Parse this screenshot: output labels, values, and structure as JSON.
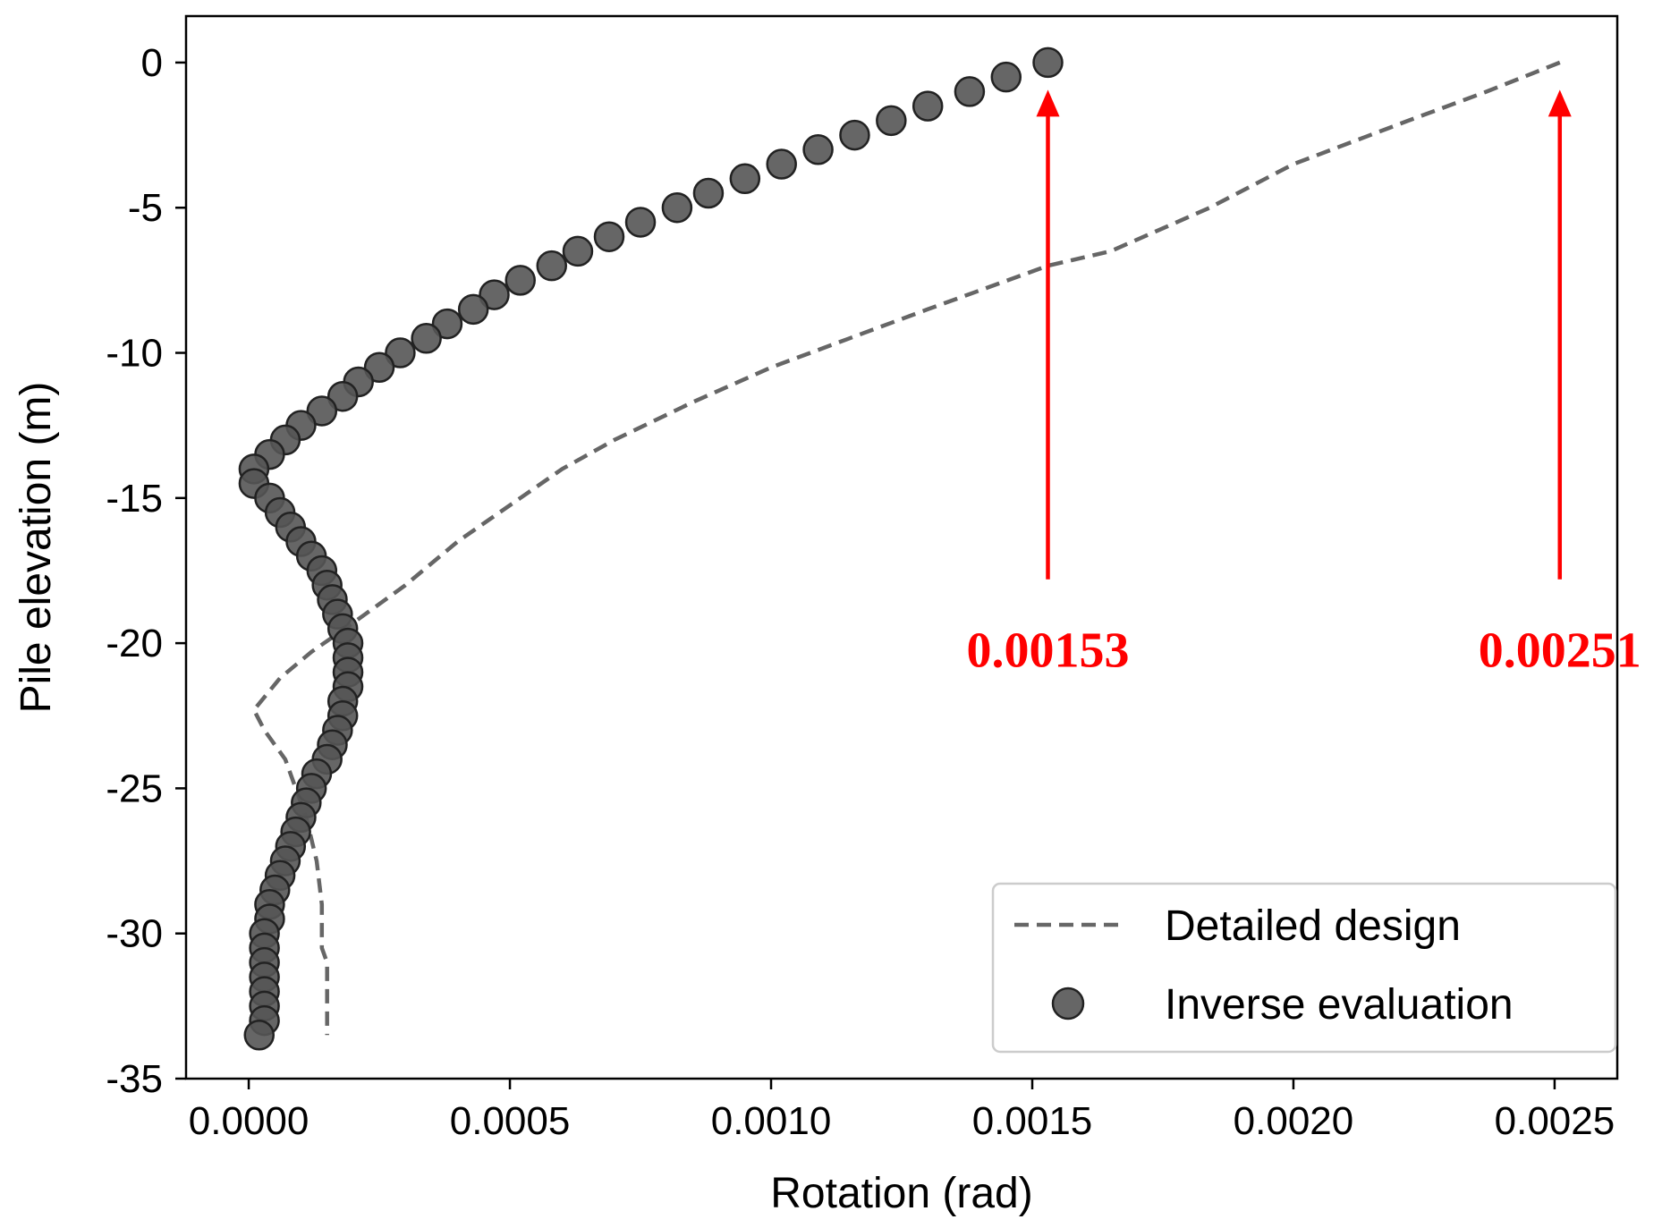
{
  "chart_data": {
    "type": "line",
    "title": "",
    "xlabel": "Rotation (rad)",
    "ylabel": "Pile elevation (m)",
    "xlim": [
      -0.00012,
      0.00262
    ],
    "ylim": [
      -35,
      1.6
    ],
    "xticks": [
      0.0,
      0.0005,
      0.001,
      0.0015,
      0.002,
      0.0025
    ],
    "xtick_labels": [
      "0.0000",
      "0.0005",
      "0.0010",
      "0.0015",
      "0.0020",
      "0.0025"
    ],
    "yticks": [
      0,
      -5,
      -10,
      -15,
      -20,
      -25,
      -30,
      -35
    ],
    "ytick_labels": [
      "0",
      "-5",
      "-10",
      "-15",
      "-20",
      "-25",
      "-30",
      "-35"
    ],
    "grid": false,
    "legend": {
      "position": "bottom-right"
    },
    "series": [
      {
        "name": "Detailed design",
        "style": "dashed-line",
        "color": "#666666",
        "points": [
          [
            0.00251,
            0
          ],
          [
            0.00237,
            -1
          ],
          [
            0.00222,
            -2
          ],
          [
            0.002,
            -3.5
          ],
          [
            0.00184,
            -5
          ],
          [
            0.00165,
            -6.5
          ],
          [
            0.00153,
            -7
          ],
          [
            0.0013,
            -8.5
          ],
          [
            0.00115,
            -9.5
          ],
          [
            0.001,
            -10.5
          ],
          [
            0.00085,
            -11.7
          ],
          [
            0.0007,
            -13
          ],
          [
            0.0006,
            -14
          ],
          [
            0.00052,
            -15
          ],
          [
            0.0004,
            -16.5
          ],
          [
            0.0003,
            -18
          ],
          [
            0.0002,
            -19.3
          ],
          [
            0.00012,
            -20.3
          ],
          [
            6e-05,
            -21.2
          ],
          [
            1e-05,
            -22.3
          ],
          [
            3e-05,
            -23
          ],
          [
            7e-05,
            -24
          ],
          [
            9e-05,
            -25
          ],
          [
            0.00011,
            -26
          ],
          [
            0.00013,
            -27.5
          ],
          [
            0.00014,
            -29
          ],
          [
            0.00014,
            -30.5
          ],
          [
            0.00015,
            -31
          ],
          [
            0.00015,
            -32
          ],
          [
            0.00015,
            -33.5
          ]
        ]
      },
      {
        "name": "Inverse evaluation",
        "style": "markers",
        "color": "#555555",
        "points": [
          [
            0.00153,
            0
          ],
          [
            0.00145,
            -0.5
          ],
          [
            0.00138,
            -1
          ],
          [
            0.0013,
            -1.5
          ],
          [
            0.00123,
            -2
          ],
          [
            0.00116,
            -2.5
          ],
          [
            0.00109,
            -3
          ],
          [
            0.00102,
            -3.5
          ],
          [
            0.00095,
            -4
          ],
          [
            0.00088,
            -4.5
          ],
          [
            0.00082,
            -5
          ],
          [
            0.00075,
            -5.5
          ],
          [
            0.00069,
            -6
          ],
          [
            0.00063,
            -6.5
          ],
          [
            0.00058,
            -7
          ],
          [
            0.00052,
            -7.5
          ],
          [
            0.00047,
            -8
          ],
          [
            0.00043,
            -8.5
          ],
          [
            0.00038,
            -9
          ],
          [
            0.00034,
            -9.5
          ],
          [
            0.00029,
            -10
          ],
          [
            0.00025,
            -10.5
          ],
          [
            0.00021,
            -11
          ],
          [
            0.00018,
            -11.5
          ],
          [
            0.00014,
            -12
          ],
          [
            0.0001,
            -12.5
          ],
          [
            7e-05,
            -13
          ],
          [
            4e-05,
            -13.5
          ],
          [
            1e-05,
            -14
          ],
          [
            1e-05,
            -14.5
          ],
          [
            4e-05,
            -15
          ],
          [
            6e-05,
            -15.5
          ],
          [
            8e-05,
            -16
          ],
          [
            0.0001,
            -16.5
          ],
          [
            0.00012,
            -17
          ],
          [
            0.00014,
            -17.5
          ],
          [
            0.00015,
            -18
          ],
          [
            0.00016,
            -18.5
          ],
          [
            0.00017,
            -19
          ],
          [
            0.00018,
            -19.5
          ],
          [
            0.00019,
            -20
          ],
          [
            0.00019,
            -20.5
          ],
          [
            0.00019,
            -21
          ],
          [
            0.00019,
            -21.5
          ],
          [
            0.00018,
            -22
          ],
          [
            0.00018,
            -22.5
          ],
          [
            0.00017,
            -23
          ],
          [
            0.00016,
            -23.5
          ],
          [
            0.00015,
            -24
          ],
          [
            0.00013,
            -24.5
          ],
          [
            0.00012,
            -25
          ],
          [
            0.00011,
            -25.5
          ],
          [
            0.0001,
            -26
          ],
          [
            9e-05,
            -26.5
          ],
          [
            8e-05,
            -27
          ],
          [
            7e-05,
            -27.5
          ],
          [
            6e-05,
            -28
          ],
          [
            5e-05,
            -28.5
          ],
          [
            4e-05,
            -29
          ],
          [
            4e-05,
            -29.5
          ],
          [
            3e-05,
            -30
          ],
          [
            3e-05,
            -30.5
          ],
          [
            3e-05,
            -31
          ],
          [
            3e-05,
            -31.5
          ],
          [
            3e-05,
            -32
          ],
          [
            3e-05,
            -32.5
          ],
          [
            3e-05,
            -33
          ],
          [
            2e-05,
            -33.5
          ]
        ]
      }
    ],
    "annotations": [
      {
        "text": "0.00153",
        "x": 0.00153,
        "y_start": -17.8,
        "y_end": -1.0,
        "color": "#ff0000"
      },
      {
        "text": "0.00251",
        "x": 0.00251,
        "y_start": -17.8,
        "y_end": -1.0,
        "color": "#ff0000"
      }
    ]
  }
}
